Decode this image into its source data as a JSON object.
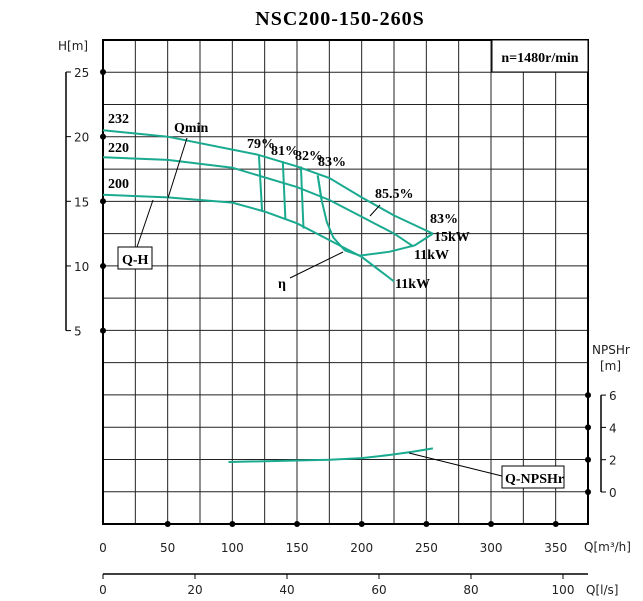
{
  "chart_data": {
    "type": "line",
    "title": "NSC200-150-260S",
    "speed_label": "n=1480r/min",
    "x_axis": {
      "label": "Q[m³/h]",
      "range": [
        0,
        375
      ],
      "ticks": [
        0,
        50,
        100,
        150,
        200,
        250,
        300,
        350
      ]
    },
    "x2_axis": {
      "label": "Q[l/s]",
      "range": [
        0,
        104.2
      ],
      "ticks": [
        0,
        20,
        40,
        60,
        80,
        100
      ]
    },
    "y_axis": {
      "label": "H[m]",
      "range": [
        5,
        25
      ],
      "ticks": [
        5,
        10,
        15,
        20,
        25
      ]
    },
    "y2_axis": {
      "label": "NPSHr",
      "unit": "[m]",
      "ticks": [
        0,
        2,
        4,
        6
      ]
    },
    "grid": true,
    "series": [
      {
        "name": "232",
        "kind": "Q-H",
        "points": [
          [
            0,
            20.5
          ],
          [
            50,
            20.0
          ],
          [
            100,
            19.0
          ],
          [
            120,
            18.6
          ],
          [
            150,
            17.7
          ],
          [
            175,
            16.8
          ],
          [
            200,
            15.3
          ],
          [
            225,
            13.9
          ],
          [
            255,
            12.5
          ]
        ]
      },
      {
        "name": "220",
        "kind": "Q-H",
        "points": [
          [
            0,
            18.4
          ],
          [
            50,
            18.2
          ],
          [
            100,
            17.6
          ],
          [
            150,
            16.1
          ],
          [
            175,
            15.1
          ],
          [
            200,
            13.8
          ],
          [
            225,
            12.5
          ],
          [
            240,
            11.5
          ]
        ]
      },
      {
        "name": "200",
        "kind": "Q-H",
        "points": [
          [
            0,
            15.5
          ],
          [
            50,
            15.3
          ],
          [
            100,
            14.9
          ],
          [
            125,
            14.2
          ],
          [
            150,
            13.3
          ],
          [
            175,
            12.0
          ],
          [
            200,
            10.7
          ],
          [
            225,
            8.8
          ]
        ]
      },
      {
        "name": "η",
        "kind": "efficiency",
        "points": [
          [
            166,
            17.0
          ],
          [
            169,
            15.1
          ],
          [
            173,
            13.4
          ],
          [
            178,
            12.2
          ],
          [
            187,
            11.2
          ],
          [
            198.5,
            10.8
          ],
          [
            221.6,
            11.1
          ],
          [
            241,
            11.6
          ],
          [
            255,
            12.5
          ]
        ]
      },
      {
        "name": "Q-NPSHr",
        "kind": "npsh",
        "points": [
          [
            97,
            1.86
          ],
          [
            150,
            1.95
          ],
          [
            175,
            2.0
          ],
          [
            200,
            2.1
          ],
          [
            222,
            2.3
          ],
          [
            240,
            2.5
          ],
          [
            255,
            2.7
          ]
        ]
      }
    ],
    "iso_efficiency": [
      {
        "label": "79%",
        "points": [
          [
            120.5,
            18.6
          ],
          [
            123,
            14.2
          ]
        ]
      },
      {
        "label": "81%",
        "points": [
          [
            139,
            18.1
          ],
          [
            141,
            13.6
          ]
        ]
      },
      {
        "label": "82%",
        "points": [
          [
            153,
            17.7
          ],
          [
            155,
            12.9
          ]
        ]
      },
      {
        "label": "83%",
        "points": [
          [
            166,
            17.0
          ],
          [
            169,
            15.1
          ]
        ]
      }
    ],
    "annotations": {
      "qmin": "Qmin",
      "qh": "Q-H",
      "eta": "η",
      "eff_855": "85.5%",
      "eff_83_end": "83%",
      "p15": "15kW",
      "p11a": "11kW",
      "p11b": "11kW",
      "npsh": "Q-NPSHr",
      "d232": "232",
      "d220": "220",
      "d200": "200"
    }
  }
}
